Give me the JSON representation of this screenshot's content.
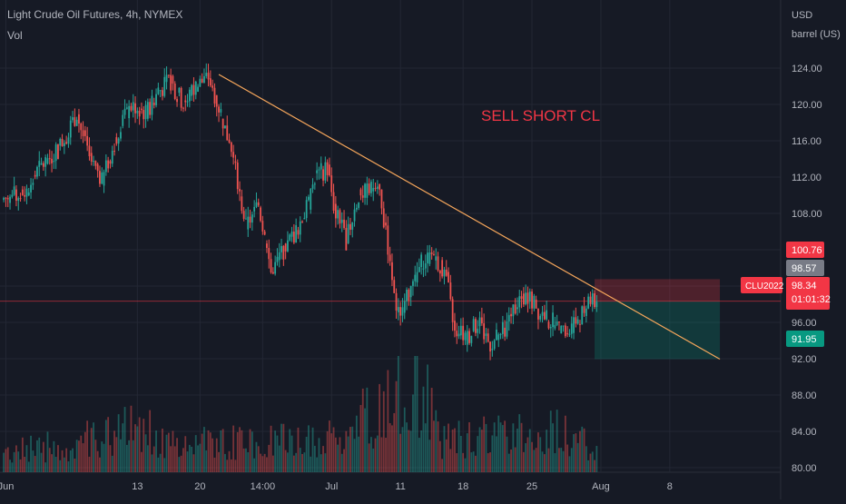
{
  "header": {
    "symbol_title": "Light Crude Oil Futures, 4h, NYMEX",
    "volume_label": "Vol"
  },
  "axis": {
    "currency": "USD",
    "unit": "barrel (US)"
  },
  "annotation": {
    "text": "SELL SHORT CL",
    "color": "#f23645"
  },
  "badges": {
    "stop_price": "100.76",
    "last_close": "98.57",
    "symbol": "CLU2022",
    "current_price": "98.34",
    "countdown": "01:01:32",
    "target_price": "91.95"
  },
  "colors": {
    "background": "#161a25",
    "up": "#26a69a",
    "down": "#ef5350",
    "trendline": "#f5a65b",
    "text": "#b2b5be",
    "grid": "#232734"
  },
  "chart_data": {
    "type": "candlestick",
    "title": "Light Crude Oil Futures, 4h, NYMEX",
    "y_axis": {
      "ylim": [
        76.5,
        131.5
      ],
      "ticks": [
        80,
        84,
        88,
        92,
        96,
        100,
        104,
        108,
        112,
        116,
        120,
        124
      ],
      "tick_labels": [
        "80.00",
        "84.00",
        "88.00",
        "92.00",
        "96.00",
        "100.00",
        "104.00",
        "108.00",
        "112.00",
        "116.00",
        "120.00",
        "124.00"
      ]
    },
    "x_axis": {
      "tick_labels": [
        "Jun",
        "13",
        "20",
        "14:00",
        "Jul",
        "11",
        "18",
        "25",
        "Aug",
        "8"
      ],
      "tick_positions": [
        0,
        21,
        31,
        41,
        52,
        63,
        73,
        84,
        95,
        106
      ],
      "total_bars": 122
    },
    "close_path": [
      [
        0,
        109.5
      ],
      [
        4,
        110.5
      ],
      [
        6,
        113.0
      ],
      [
        9,
        115.0
      ],
      [
        12,
        119.0
      ],
      [
        14,
        114.0
      ],
      [
        16,
        111.5
      ],
      [
        19,
        118.0
      ],
      [
        21,
        120.0
      ],
      [
        23,
        119.0
      ],
      [
        25,
        121.5
      ],
      [
        27,
        122.5
      ],
      [
        29,
        120.0
      ],
      [
        31,
        122.0
      ],
      [
        33,
        123.0
      ],
      [
        34,
        121.0
      ],
      [
        35,
        119.0
      ],
      [
        37,
        114.0
      ],
      [
        39,
        106.5
      ],
      [
        41,
        109.0
      ],
      [
        43,
        101.5
      ],
      [
        45,
        104.0
      ],
      [
        47,
        106.0
      ],
      [
        49,
        109.0
      ],
      [
        50,
        112.0
      ],
      [
        52,
        113.0
      ],
      [
        53,
        109.0
      ],
      [
        55,
        105.0
      ],
      [
        57,
        110.0
      ],
      [
        60,
        111.0
      ],
      [
        62,
        103.0
      ],
      [
        63,
        96.5
      ],
      [
        65,
        99.0
      ],
      [
        67,
        102.5
      ],
      [
        69,
        103.5
      ],
      [
        71,
        101.0
      ],
      [
        72,
        96.0
      ],
      [
        74,
        94.0
      ],
      [
        76,
        96.0
      ],
      [
        78,
        93.5
      ],
      [
        80,
        95.0
      ],
      [
        82,
        98.0
      ],
      [
        84,
        99.0
      ],
      [
        86,
        97.0
      ],
      [
        88,
        96.0
      ],
      [
        90,
        94.5
      ],
      [
        92,
        96.5
      ],
      [
        94,
        98.3
      ]
    ],
    "volume_profile": [
      [
        0,
        0.2
      ],
      [
        10,
        0.26
      ],
      [
        20,
        0.42
      ],
      [
        30,
        0.27
      ],
      [
        40,
        0.3
      ],
      [
        50,
        0.28
      ],
      [
        60,
        0.6
      ],
      [
        64,
        1.0
      ],
      [
        70,
        0.32
      ],
      [
        80,
        0.36
      ],
      [
        88,
        0.38
      ],
      [
        94,
        0.22
      ]
    ],
    "trendline": {
      "start": {
        "bar": 34,
        "price": 123.3
      },
      "end": {
        "bar": 114,
        "price": 91.95
      }
    },
    "position": {
      "entry": 98.34,
      "stop": 100.76,
      "target": 91.95,
      "start_bar": 94,
      "end_bar": 114
    }
  }
}
